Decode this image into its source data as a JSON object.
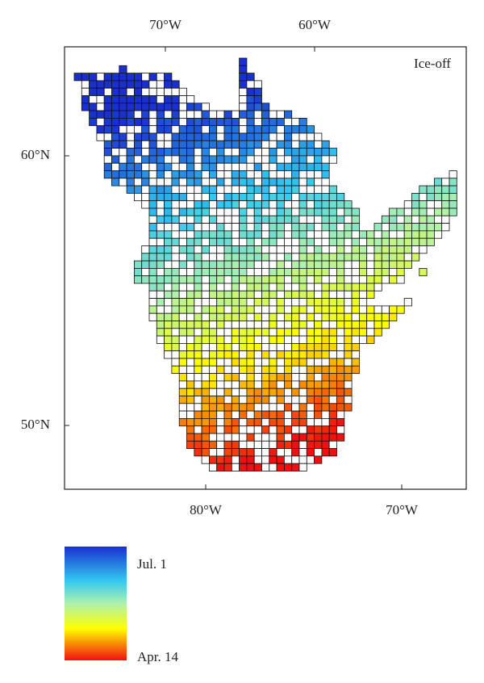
{
  "map": {
    "label": "Ice-off",
    "top_axis": [
      "70°W",
      "60°W"
    ],
    "left_axis": [
      "60°N",
      "50°N"
    ],
    "bottom_axis": [
      "80°W",
      "70°W"
    ],
    "legend": {
      "top": "Jul. 1",
      "bottom": "Apr. 14"
    }
  }
}
